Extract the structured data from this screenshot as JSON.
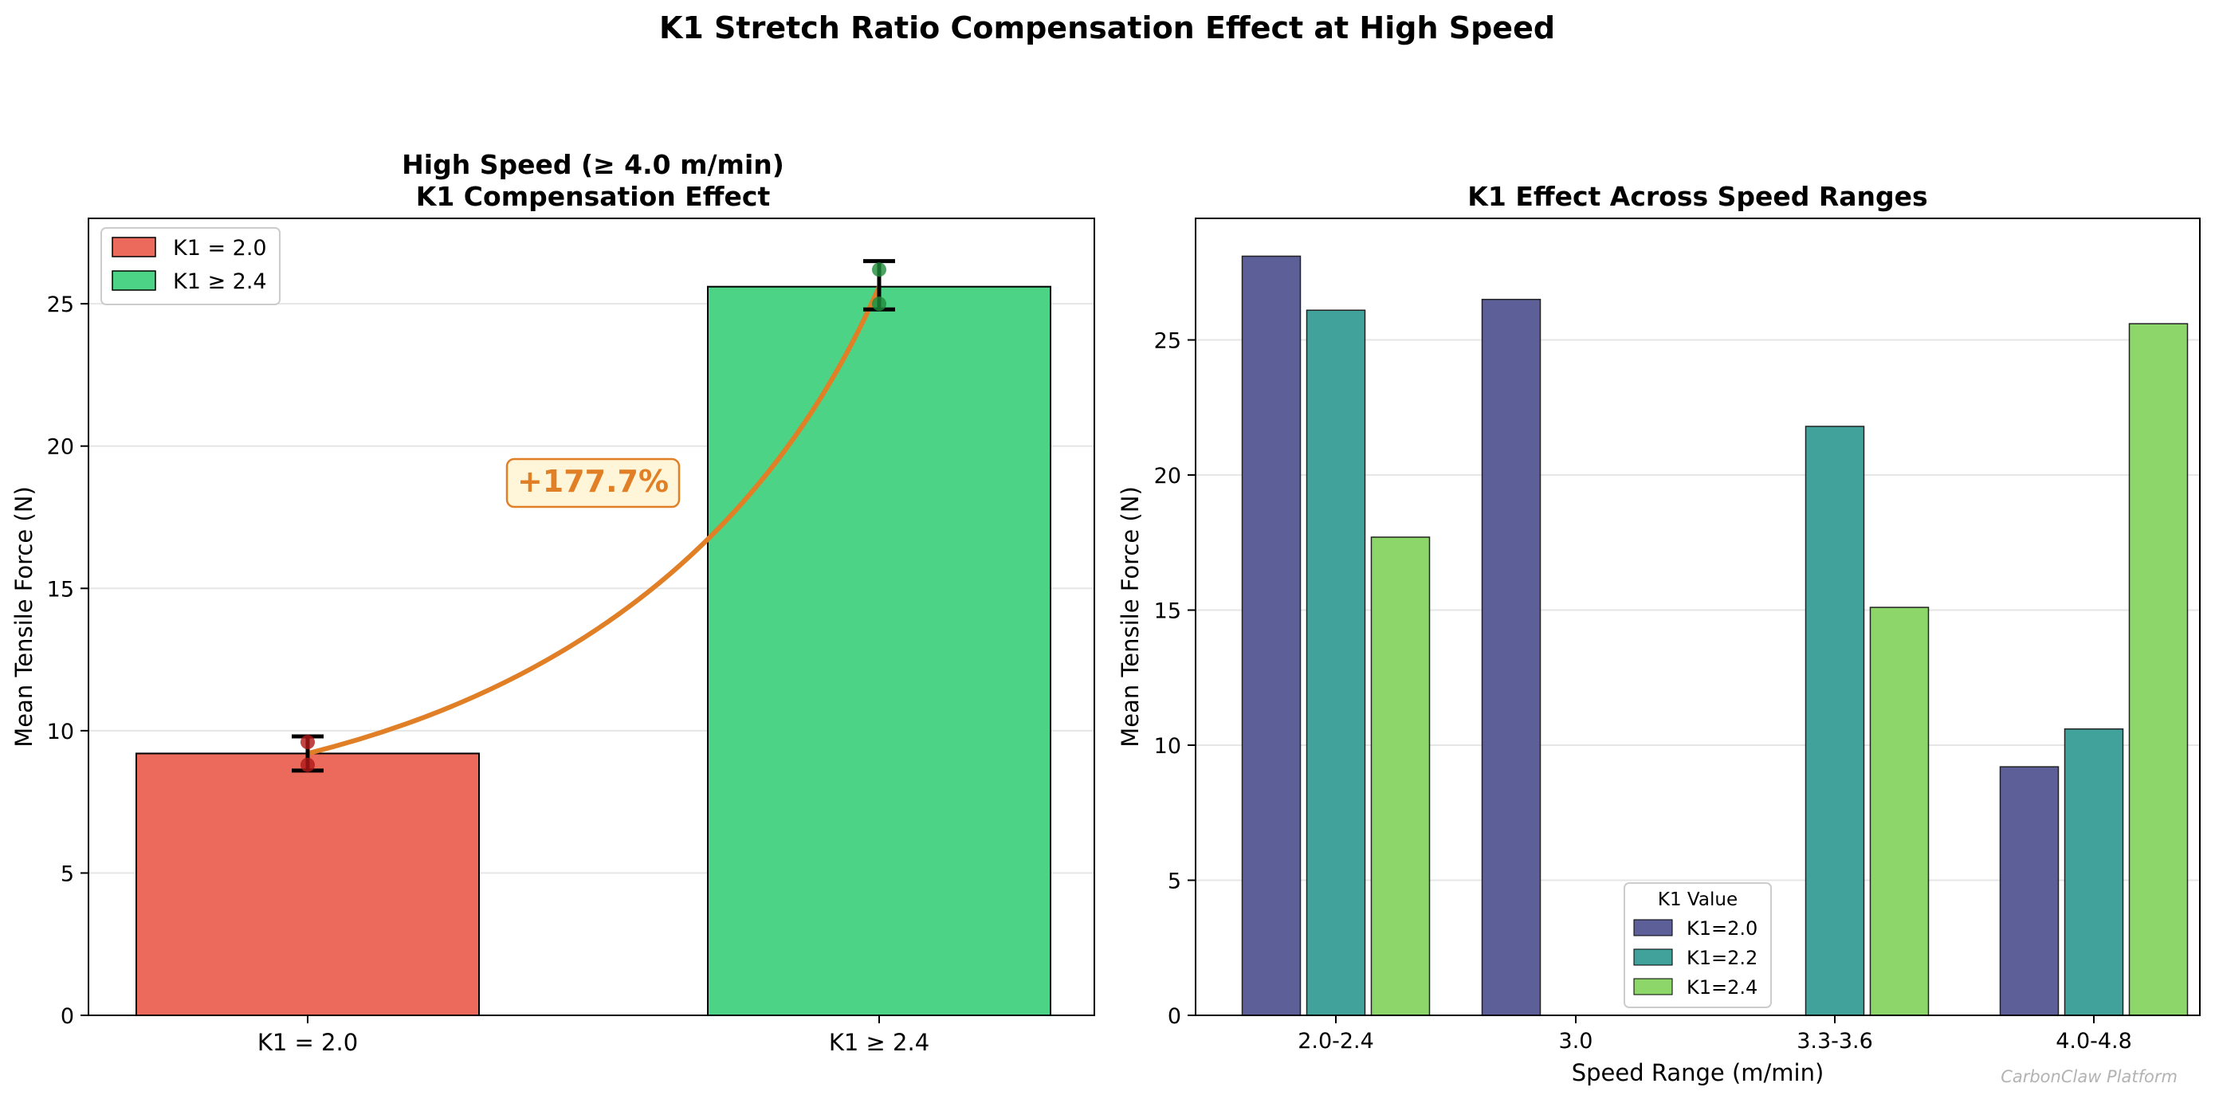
{
  "figure": {
    "suptitle": "K1 Stretch Ratio Compensation Effect at High Speed",
    "watermark": "CarbonClaw Platform"
  },
  "colors": {
    "red_bar": "#EC6A5C",
    "green_bar": "#4DD385",
    "curve": "#E07F26",
    "annot_bg": "#FFF5D9",
    "k1_20": "#5C5F98",
    "k1_22": "#41A29C",
    "k1_24": "#8DD66A",
    "grid": "#E6E6E6"
  },
  "chart_data": [
    {
      "type": "bar",
      "title": "High Speed (≥ 4.0 m/min)",
      "subtitle": "K1 Compensation Effect",
      "xlabel": "",
      "ylabel": "Mean Tensile Force (N)",
      "ylim": [
        0,
        28
      ],
      "yticks": [
        0,
        5,
        10,
        15,
        20,
        25
      ],
      "categories": [
        "K1 = 2.0",
        "K1 ≥ 2.4"
      ],
      "values": [
        9.2,
        25.6
      ],
      "errors": [
        {
          "low": 8.6,
          "high": 9.8
        },
        {
          "low": 24.8,
          "high": 26.5
        }
      ],
      "points": [
        [
          9.6,
          8.8
        ],
        [
          26.2,
          25.0
        ]
      ],
      "legend": {
        "position": "upper-left",
        "entries": [
          "K1 = 2.0",
          "K1 ≥ 2.4"
        ]
      },
      "annotation": "+177.7%",
      "grid": true
    },
    {
      "type": "bar",
      "title": "K1 Effect Across Speed Ranges",
      "xlabel": "Speed Range (m/min)",
      "ylabel": "Mean Tensile Force (N)",
      "ylim": [
        0,
        29.5
      ],
      "yticks": [
        0,
        5,
        10,
        15,
        20,
        25
      ],
      "categories": [
        "2.0-2.4",
        "3.0",
        "3.3-3.6",
        "4.0-4.8"
      ],
      "series": [
        {
          "name": "K1=2.0",
          "values": [
            28.1,
            26.5,
            null,
            9.2
          ]
        },
        {
          "name": "K1=2.2",
          "values": [
            26.1,
            null,
            21.8,
            10.6
          ]
        },
        {
          "name": "K1=2.4",
          "values": [
            17.7,
            null,
            15.1,
            25.6
          ]
        }
      ],
      "legend": {
        "title": "K1 Value",
        "position": "lower-center"
      },
      "grid": true
    }
  ]
}
